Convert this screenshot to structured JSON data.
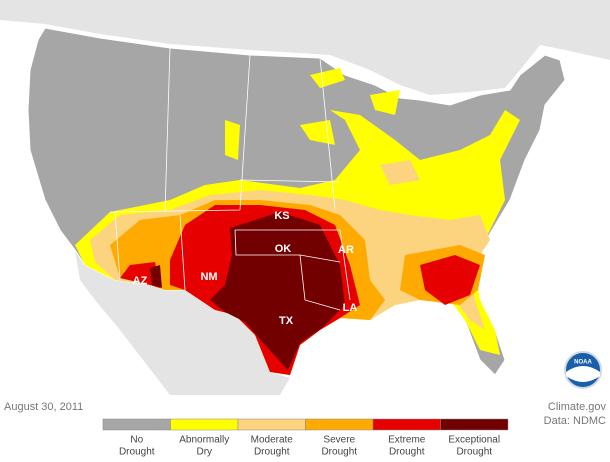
{
  "map": {
    "state_labels": [
      {
        "text": "KS"
      },
      {
        "text": "OK"
      },
      {
        "text": "NM"
      },
      {
        "text": "AZ"
      },
      {
        "text": "TX"
      },
      {
        "text": "AR"
      },
      {
        "text": "LA"
      }
    ],
    "logo": "NOAA",
    "date": "August 30, 2011",
    "source": "Climate.gov",
    "data_credit": "Data: NDMC",
    "legend": [
      {
        "lines": [
          "No",
          "Drought"
        ],
        "color": "#a6a6a6"
      },
      {
        "lines": [
          "Abnormally",
          "Dry"
        ],
        "color": "#ffff00"
      },
      {
        "lines": [
          "Moderate",
          "Drought"
        ],
        "color": "#fcd37f"
      },
      {
        "lines": [
          "Severe",
          "Drought"
        ],
        "color": "#ffaa00"
      },
      {
        "lines": [
          "Extreme",
          "Drought"
        ],
        "color": "#e60000"
      },
      {
        "lines": [
          "Exceptional",
          "Drought"
        ],
        "color": "#730000"
      }
    ]
  }
}
